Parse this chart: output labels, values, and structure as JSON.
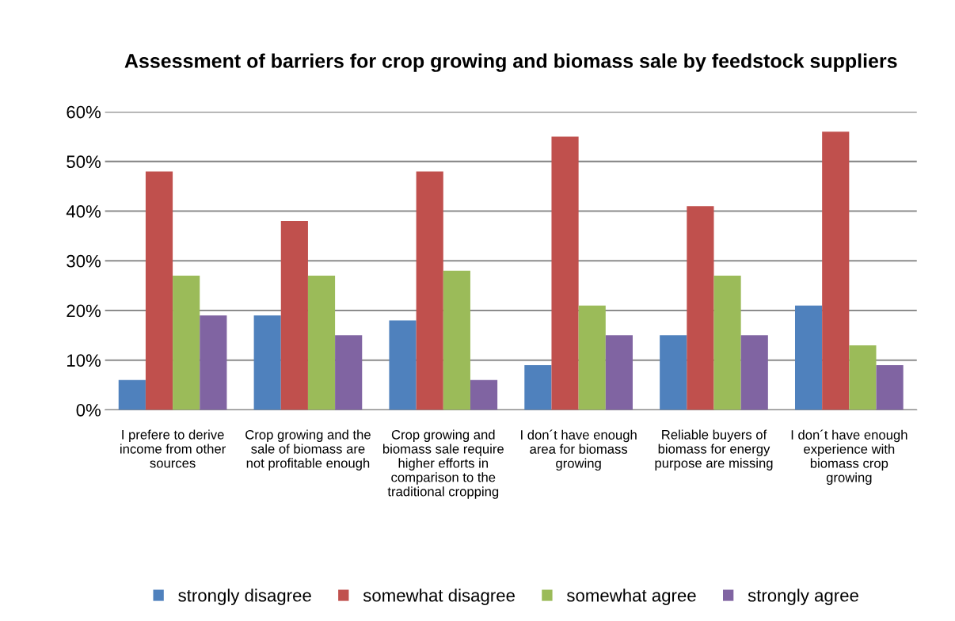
{
  "chart_data": {
    "type": "bar",
    "title": "Assessment of barriers for crop growing and biomass sale by feedstock suppliers",
    "categories": [
      "I prefere to derive income from other sources",
      "Crop growing and the sale of biomass are not profitable enough",
      "Crop growing and biomass sale require higher efforts in comparison to the traditional cropping",
      "I don´t have enough area for biomass growing",
      "Reliable buyers of biomass for energy purpose are missing",
      "I don´t have enough experience with biomass crop growing"
    ],
    "series": [
      {
        "name": "strongly disagree",
        "color": "#4f81bd",
        "values": [
          6,
          19,
          18,
          9,
          15,
          21
        ]
      },
      {
        "name": "somewhat disagree",
        "color": "#c0504d",
        "values": [
          48,
          38,
          48,
          55,
          41,
          56
        ]
      },
      {
        "name": "somewhat agree",
        "color": "#9bbb59",
        "values": [
          27,
          27,
          28,
          21,
          27,
          13
        ]
      },
      {
        "name": "strongly agree",
        "color": "#8064a2",
        "values": [
          19,
          15,
          6,
          15,
          15,
          9
        ]
      }
    ],
    "ylim": [
      0,
      60
    ],
    "yticks": [
      {
        "value": 0,
        "label": "0%"
      },
      {
        "value": 10,
        "label": "10%"
      },
      {
        "value": 20,
        "label": "20%"
      },
      {
        "value": 30,
        "label": "30%"
      },
      {
        "value": 40,
        "label": "40%"
      },
      {
        "value": 50,
        "label": "50%"
      },
      {
        "value": 60,
        "label": "60%"
      }
    ],
    "grid": "y",
    "legend": "bottom"
  }
}
